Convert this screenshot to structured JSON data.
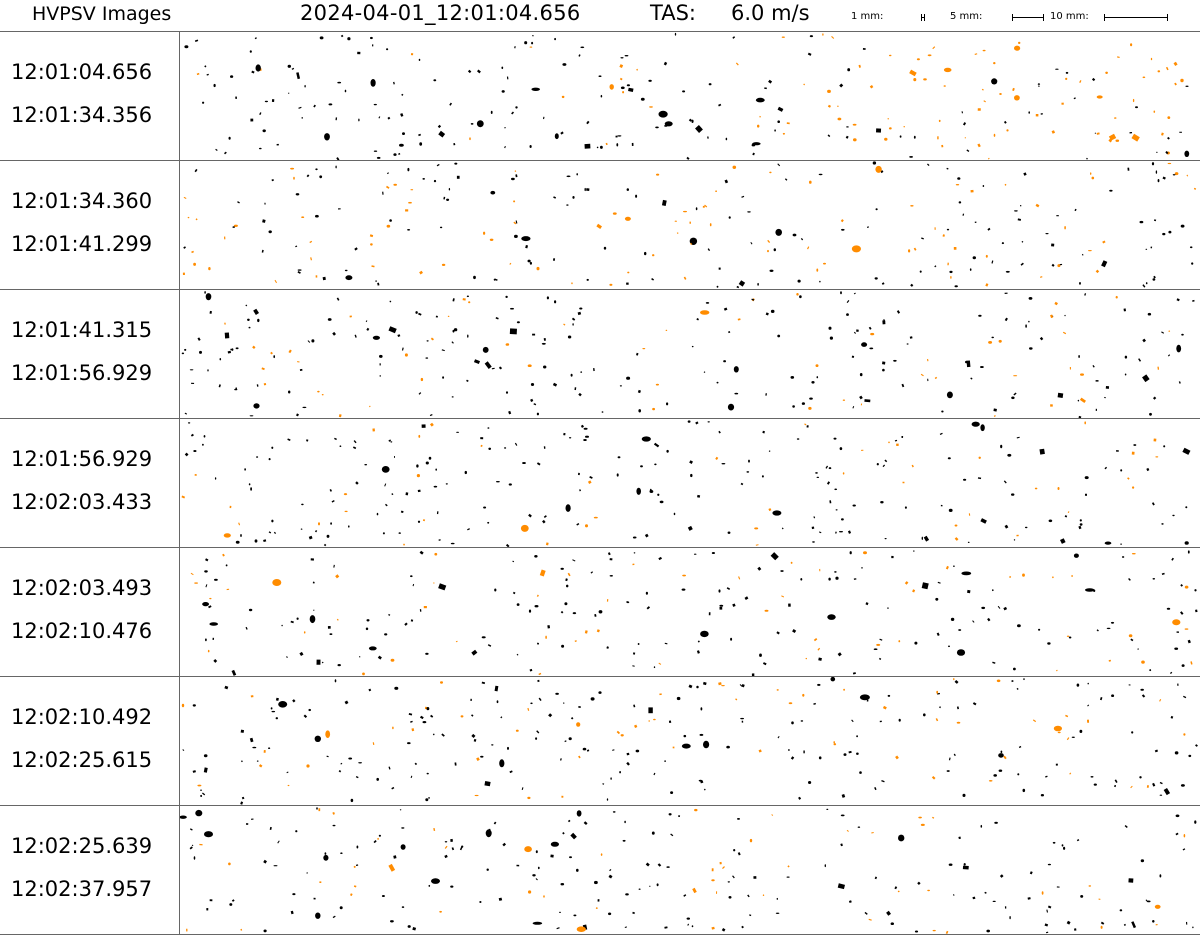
{
  "header": {
    "title": "HVPSV Images",
    "timestamp": "2024-04-01_12:01:04.656",
    "tas_label": "TAS:",
    "tas_value": "6.0 m/s"
  },
  "scale": {
    "label_1mm": "1 mm:",
    "label_5mm": "5 mm:",
    "label_10mm": "10 mm:"
  },
  "colors": {
    "particle": "#000000",
    "particle_highlight": "#ff8c00",
    "frame": "#666666"
  },
  "strips": [
    {
      "start": "12:01:04.656",
      "end": "12:01:34.356"
    },
    {
      "start": "12:01:34.360",
      "end": "12:01:41.299"
    },
    {
      "start": "12:01:41.315",
      "end": "12:01:56.929"
    },
    {
      "start": "12:01:56.929",
      "end": "12:02:03.433"
    },
    {
      "start": "12:02:03.493",
      "end": "12:02:10.476"
    },
    {
      "start": "12:02:10.492",
      "end": "12:02:25.615"
    },
    {
      "start": "12:02:25.639",
      "end": "12:02:37.957"
    }
  ]
}
